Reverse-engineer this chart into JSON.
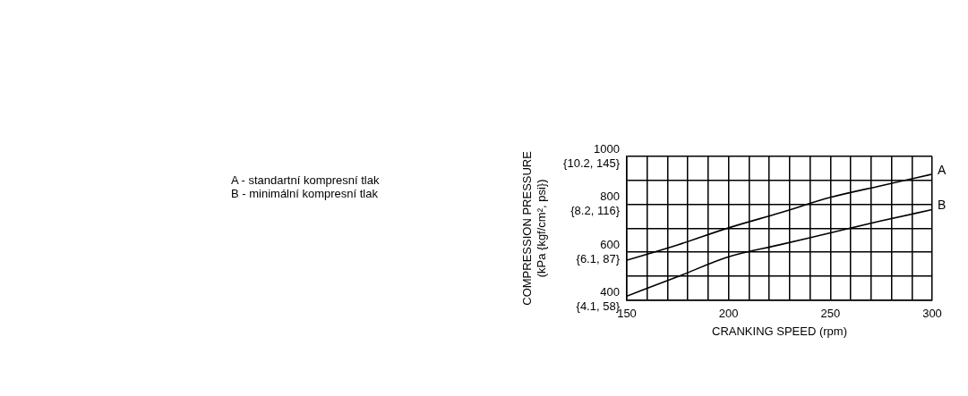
{
  "chart_data": {
    "type": "line",
    "xlabel": "CRANKING SPEED (rpm)",
    "ylabel": "COMPRESSION PRESSURE\n(kPa {kgf/cm², psi})",
    "x": [
      150,
      175,
      200,
      225,
      250,
      275,
      300
    ],
    "series": [
      {
        "name": "A",
        "color": "#000000",
        "values": [
          567,
          631,
          702,
          764,
          829,
          878,
          926
        ]
      },
      {
        "name": "B",
        "color": "#000000",
        "values": [
          417,
          498,
          581,
          631,
          681,
          731,
          778
        ]
      }
    ],
    "xlim": [
      150,
      300
    ],
    "xticks": [
      150,
      {
        "value": 160,
        "label": null
      },
      {
        "value": 170,
        "label": null
      },
      {
        "value": 180,
        "label": null
      },
      {
        "value": 190,
        "label": null
      },
      200,
      {
        "value": 210,
        "label": null
      },
      {
        "value": 220,
        "label": null
      },
      {
        "value": 230,
        "label": null
      },
      {
        "value": 240,
        "label": null
      },
      250,
      {
        "value": 260,
        "label": null
      },
      {
        "value": 270,
        "label": null
      },
      {
        "value": 280,
        "label": null
      },
      {
        "value": 290,
        "label": null
      },
      300
    ],
    "ylim": [
      400,
      1000
    ],
    "yticks": [
      400,
      {
        "value": 500,
        "label": null
      },
      600,
      {
        "value": 700,
        "label": null
      },
      800,
      {
        "value": 900,
        "label": null
      },
      1000
    ],
    "grid": true,
    "legend": false,
    "marker": "none",
    "line_style": "solid",
    "annotations": [
      "A - standartní kompresní tlak",
      "B - minimální kompresní tlak",
      "{4.1, 58}",
      "{6.1, 87}",
      "{8.2, 116}",
      "{10.2, 145}"
    ]
  }
}
